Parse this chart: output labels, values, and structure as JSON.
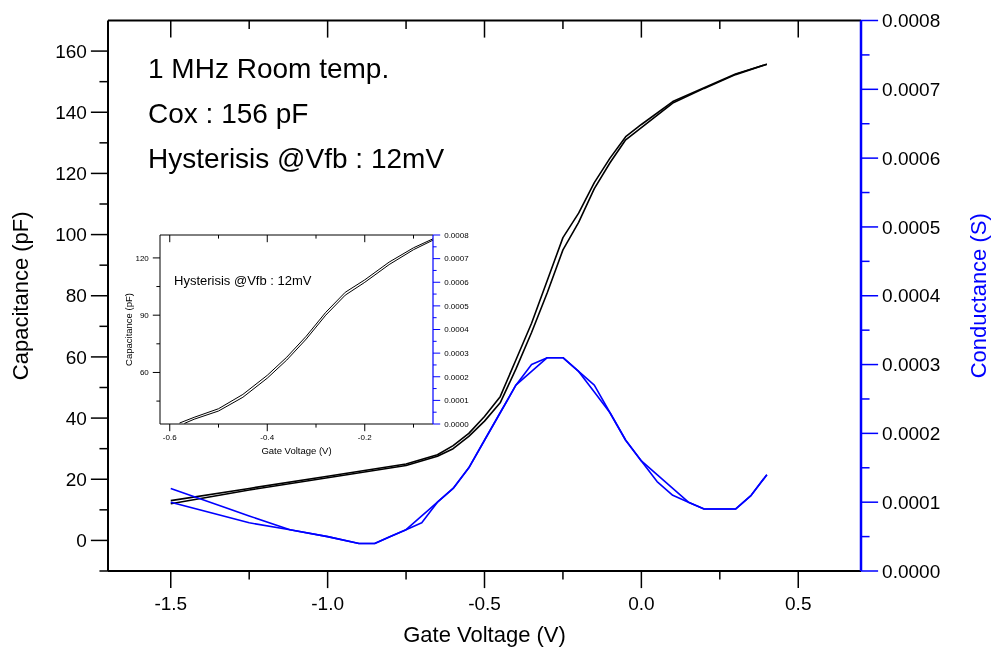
{
  "chart_data": [
    {
      "type": "line",
      "xlabel": "Gate Voltage (V)",
      "ylabel": "Capacitance (pF)",
      "y2label": "Conductance (S)",
      "annotations": [
        "1 MHz Room temp.",
        "Cox : 156 pF",
        "Hysterisis @Vfb : 12mV"
      ],
      "xlim": [
        -1.7,
        0.7
      ],
      "xticks": [
        {
          "value": -1.5,
          "label": "-1.5"
        },
        {
          "value": -1.25,
          "label": null
        },
        {
          "value": -1.0,
          "label": "-1.0"
        },
        {
          "value": -0.75,
          "label": null
        },
        {
          "value": -0.5,
          "label": "-0.5"
        },
        {
          "value": -0.25,
          "label": null
        },
        {
          "value": 0,
          "label": "0.0"
        },
        {
          "value": 0.25,
          "label": null
        },
        {
          "value": 0.5,
          "label": "0.5"
        }
      ],
      "ylim": [
        -10,
        170
      ],
      "yticks": [
        {
          "value": -10,
          "label": null
        },
        0,
        {
          "value": 10,
          "label": null
        },
        20,
        {
          "value": 30,
          "label": null
        },
        40,
        {
          "value": 50,
          "label": null
        },
        60,
        {
          "value": 70,
          "label": null
        },
        80,
        {
          "value": 90,
          "label": null
        },
        100,
        {
          "value": 110,
          "label": null
        },
        120,
        {
          "value": 130,
          "label": null
        },
        140,
        {
          "value": 150,
          "label": null
        },
        160
      ],
      "y2lim": [
        0,
        0.0008
      ],
      "y2ticks": [
        {
          "value": 0,
          "label": "0.0000"
        },
        {
          "value": 5e-05,
          "label": null
        },
        {
          "value": 0.0001,
          "label": "0.0001"
        },
        {
          "value": 0.00015,
          "label": null
        },
        {
          "value": 0.0002,
          "label": "0.0002"
        },
        {
          "value": 0.00025,
          "label": null
        },
        {
          "value": 0.0003,
          "label": "0.0003"
        },
        {
          "value": 0.00035,
          "label": null
        },
        {
          "value": 0.0004,
          "label": "0.0004"
        },
        {
          "value": 0.00045,
          "label": null
        },
        {
          "value": 0.0005,
          "label": "0.0005"
        },
        {
          "value": 0.00055,
          "label": null
        },
        {
          "value": 0.0006,
          "label": "0.0006"
        },
        {
          "value": 0.00065,
          "label": null
        },
        {
          "value": 0.0007,
          "label": "0.0007"
        },
        {
          "value": 0.00075,
          "label": null
        },
        {
          "value": 0.0008,
          "label": "0.0008"
        }
      ],
      "series": [
        {
          "color": "#000000",
          "x": [
            -1.5,
            -1.25,
            -1.0,
            -0.75,
            -0.65,
            -0.6,
            -0.55,
            -0.5,
            -0.45,
            -0.4,
            -0.35,
            -0.3,
            -0.25,
            -0.2,
            -0.15,
            -0.1,
            -0.05,
            0.0,
            0.1,
            0.2,
            0.3,
            0.4
          ],
          "values": [
            13,
            17,
            21,
            25,
            28,
            31,
            35,
            40.5,
            47,
            59,
            71,
            85,
            99,
            107,
            117,
            125,
            132,
            136,
            143.5,
            148,
            152.5,
            155.7
          ]
        },
        {
          "color": "#000000",
          "x": [
            -1.5,
            -1.25,
            -1.0,
            -0.75,
            -0.65,
            -0.6,
            -0.55,
            -0.5,
            -0.45,
            -0.4,
            -0.35,
            -0.3,
            -0.25,
            -0.2,
            -0.15,
            -0.1,
            -0.05,
            0.0,
            0.1,
            0.2,
            0.3,
            0.4
          ],
          "values": [
            12,
            16.5,
            20.5,
            24.5,
            27.5,
            30,
            34,
            39,
            45,
            56,
            68,
            81,
            95,
            104,
            115,
            123.5,
            131,
            135,
            143,
            147.8,
            152.3,
            155.7
          ]
        },
        {
          "color": "#0000ff",
          "axis": "y2",
          "x": [
            -1.5,
            -1.25,
            -1.12,
            -1.0,
            -0.9,
            -0.85,
            -0.8,
            -0.75,
            -0.7,
            -0.65,
            -0.6,
            -0.55,
            -0.5,
            -0.45,
            -0.4,
            -0.35,
            -0.3,
            -0.25,
            -0.2,
            -0.15,
            -0.1,
            -0.05,
            0.0,
            0.05,
            0.1,
            0.15,
            0.2,
            0.25,
            0.3,
            0.35,
            0.4
          ],
          "values": [
            0.00012,
            8e-05,
            6e-05,
            5e-05,
            4e-05,
            4e-05,
            5e-05,
            6e-05,
            8e-05,
            0.0001,
            0.00012,
            0.00015,
            0.00019,
            0.00023,
            0.00027,
            0.0003,
            0.00031,
            0.00031,
            0.00029,
            0.00027,
            0.00023,
            0.00019,
            0.00016,
            0.00014,
            0.00012,
            0.0001,
            9e-05,
            9e-05,
            9e-05,
            0.00011,
            0.00014
          ]
        },
        {
          "color": "#0000ff",
          "axis": "y2",
          "x": [
            -1.5,
            -1.25,
            -1.12,
            -1.0,
            -0.9,
            -0.85,
            -0.8,
            -0.75,
            -0.7,
            -0.65,
            -0.6,
            -0.55,
            -0.5,
            -0.45,
            -0.4,
            -0.35,
            -0.3,
            -0.25,
            -0.2,
            -0.15,
            -0.1,
            -0.05,
            0.0,
            0.05,
            0.1,
            0.15,
            0.2,
            0.25,
            0.3,
            0.35,
            0.4
          ],
          "values": [
            0.0001,
            7e-05,
            6e-05,
            5e-05,
            4e-05,
            4e-05,
            5e-05,
            6e-05,
            7e-05,
            0.0001,
            0.00012,
            0.00015,
            0.00019,
            0.00023,
            0.00027,
            0.00029,
            0.00031,
            0.00031,
            0.00029,
            0.00026,
            0.00023,
            0.00019,
            0.00016,
            0.00013,
            0.00011,
            0.0001,
            9e-05,
            9e-05,
            9e-05,
            0.00011,
            0.00014
          ]
        }
      ]
    },
    {
      "type": "line",
      "xlabel": "Gate Voltage (V)",
      "ylabel": "Capacitance (pF)",
      "annotations": [
        "Hysterisis @Vfb : 12mV"
      ],
      "xlim": [
        -0.62,
        -0.06
      ],
      "xticks": [
        -0.6,
        {
          "value": -0.5,
          "label": null
        },
        -0.4,
        {
          "value": -0.3,
          "label": null
        },
        -0.2,
        {
          "value": -0.1,
          "label": null
        }
      ],
      "ylim": [
        33,
        132
      ],
      "yticks": [
        {
          "value": 45,
          "label": null
        },
        60,
        {
          "value": 75,
          "label": null
        },
        90,
        {
          "value": 105,
          "label": null
        },
        120
      ],
      "y2lim": [
        0,
        0.0008
      ],
      "y2ticks": [
        {
          "value": 0,
          "label": "0.0000"
        },
        {
          "value": 5e-05,
          "label": null
        },
        {
          "value": 0.0001,
          "label": "0.0001"
        },
        {
          "value": 0.00015,
          "label": null
        },
        {
          "value": 0.0002,
          "label": "0.0002"
        },
        {
          "value": 0.00025,
          "label": null
        },
        {
          "value": 0.0003,
          "label": "0.0003"
        },
        {
          "value": 0.00035,
          "label": null
        },
        {
          "value": 0.0004,
          "label": "0.0004"
        },
        {
          "value": 0.00045,
          "label": null
        },
        {
          "value": 0.0005,
          "label": "0.0005"
        },
        {
          "value": 0.00055,
          "label": null
        },
        {
          "value": 0.0006,
          "label": "0.0006"
        },
        {
          "value": 0.00065,
          "label": null
        },
        {
          "value": 0.0007,
          "label": "0.0007"
        },
        {
          "value": 0.00075,
          "label": null
        },
        {
          "value": 0.0008,
          "label": "0.0008"
        }
      ],
      "series": [
        {
          "color": "#000000",
          "x": [
            -0.58,
            -0.55,
            -0.5,
            -0.45,
            -0.4,
            -0.36,
            -0.32,
            -0.28,
            -0.24,
            -0.2,
            -0.15,
            -0.1,
            -0.06
          ],
          "values": [
            33.5,
            36.5,
            41,
            48.5,
            58.5,
            68,
            79,
            91.5,
            102,
            108.5,
            117.8,
            125.3,
            130
          ]
        },
        {
          "color": "#000000",
          "x": [
            -0.57,
            -0.55,
            -0.5,
            -0.45,
            -0.4,
            -0.36,
            -0.32,
            -0.28,
            -0.24,
            -0.2,
            -0.15,
            -0.1,
            -0.06
          ],
          "values": [
            33.3,
            35.5,
            39.8,
            47,
            57,
            66.5,
            77.5,
            90,
            100.5,
            107.2,
            116.5,
            124.3,
            129.3
          ]
        }
      ]
    }
  ]
}
